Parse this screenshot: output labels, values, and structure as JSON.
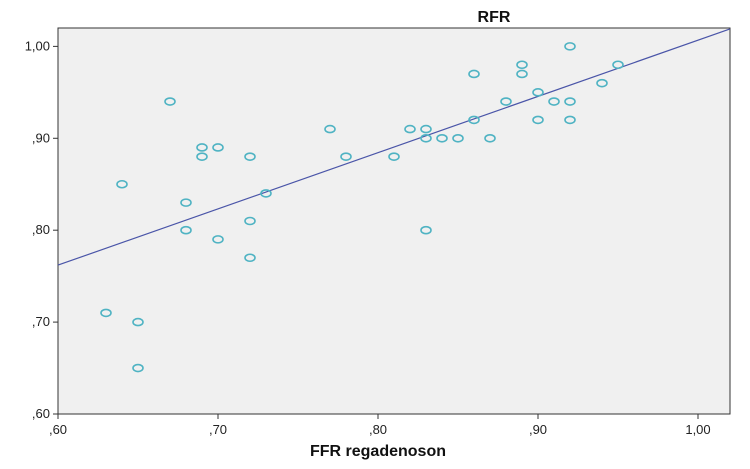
{
  "chart_data": {
    "type": "scatter",
    "title": "RFR",
    "xlabel": "FFR regadenoson",
    "ylabel": "",
    "xlim": [
      0.6,
      1.02
    ],
    "ylim": [
      0.6,
      1.02
    ],
    "x_ticks": [
      0.6,
      0.7,
      0.8,
      0.9,
      1.0
    ],
    "x_tick_labels": [
      ",60",
      ",70",
      ",80",
      ",90",
      "1,00"
    ],
    "y_ticks": [
      0.6,
      0.7,
      0.8,
      0.9,
      1.0
    ],
    "y_tick_labels": [
      ",60",
      ",70",
      ",80",
      ",90",
      "1,00"
    ],
    "grid": false,
    "colors": {
      "plot_background": "#f0f0f0",
      "marker": "#4fb3c3",
      "fit_line": "#4a55a8",
      "axis": "#333333"
    },
    "series": [
      {
        "points": [
          [
            0.63,
            0.71
          ],
          [
            0.64,
            0.85
          ],
          [
            0.65,
            0.7
          ],
          [
            0.65,
            0.65
          ],
          [
            0.67,
            0.94
          ],
          [
            0.68,
            0.83
          ],
          [
            0.68,
            0.8
          ],
          [
            0.69,
            0.89
          ],
          [
            0.69,
            0.88
          ],
          [
            0.7,
            0.89
          ],
          [
            0.7,
            0.79
          ],
          [
            0.72,
            0.88
          ],
          [
            0.72,
            0.81
          ],
          [
            0.72,
            0.77
          ],
          [
            0.73,
            0.84
          ],
          [
            0.77,
            0.91
          ],
          [
            0.78,
            0.88
          ],
          [
            0.81,
            0.88
          ],
          [
            0.82,
            0.91
          ],
          [
            0.83,
            0.91
          ],
          [
            0.83,
            0.9
          ],
          [
            0.83,
            0.8
          ],
          [
            0.84,
            0.9
          ],
          [
            0.85,
            0.9
          ],
          [
            0.86,
            0.97
          ],
          [
            0.86,
            0.92
          ],
          [
            0.87,
            0.9
          ],
          [
            0.88,
            0.94
          ],
          [
            0.89,
            0.98
          ],
          [
            0.89,
            0.97
          ],
          [
            0.9,
            0.95
          ],
          [
            0.9,
            0.92
          ],
          [
            0.91,
            0.94
          ],
          [
            0.92,
            1.0
          ],
          [
            0.92,
            0.94
          ],
          [
            0.92,
            0.92
          ],
          [
            0.94,
            0.96
          ],
          [
            0.95,
            0.98
          ]
        ]
      }
    ],
    "fit_line": {
      "type": "linear",
      "from": [
        0.6,
        0.762
      ],
      "to": [
        1.02,
        1.019
      ]
    }
  }
}
